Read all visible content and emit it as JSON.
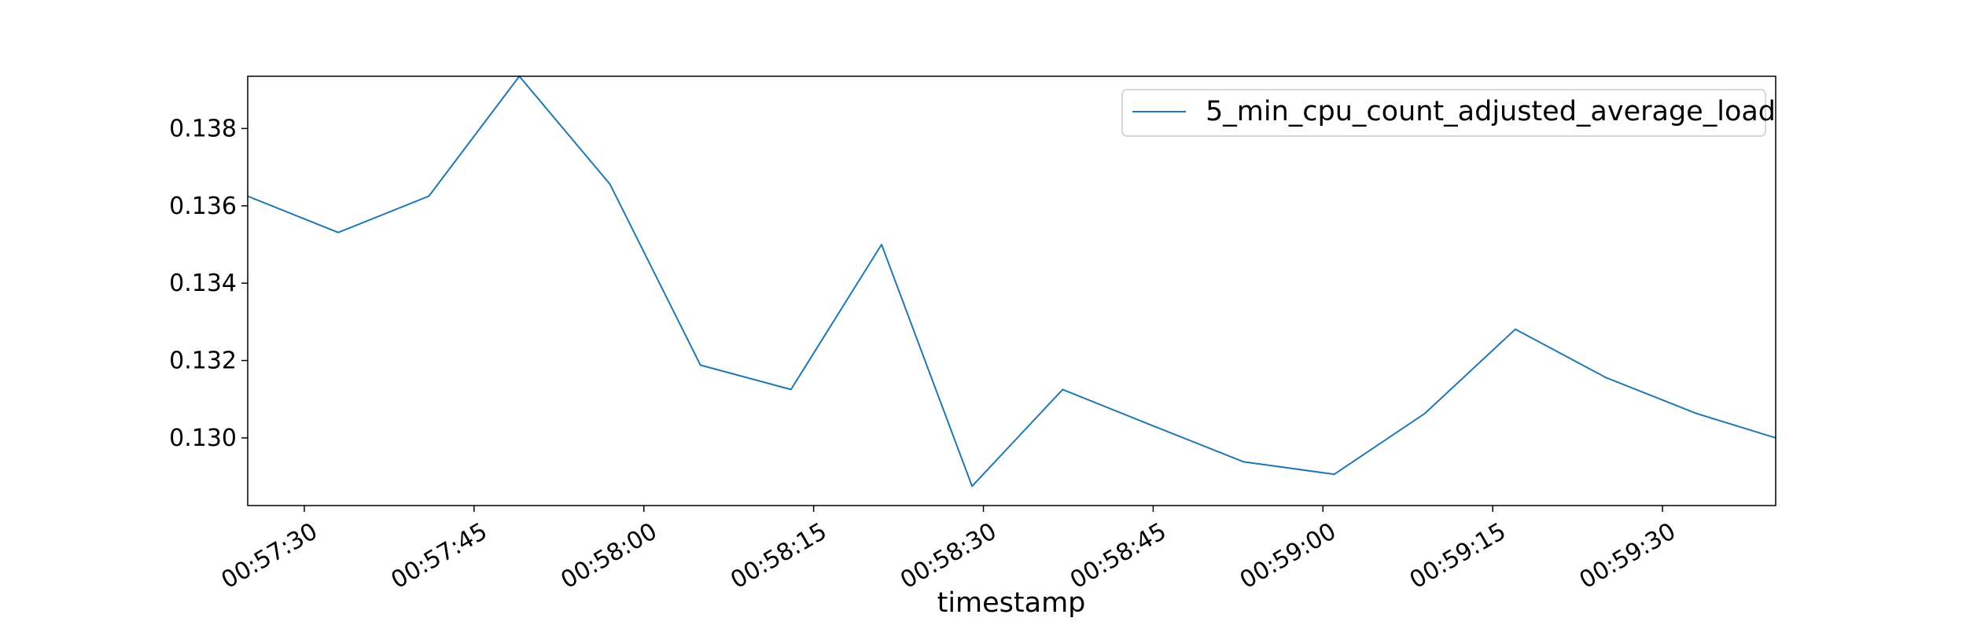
{
  "chart_data": {
    "type": "line",
    "title": "",
    "xlabel": "timestamp",
    "ylabel": "",
    "grid": false,
    "legend": {
      "position": "top-right",
      "entries": [
        "5_min_cpu_count_adjusted_average_load"
      ]
    },
    "xlim": [
      "00:57:25",
      "00:59:40"
    ],
    "ylim": [
      0.12825,
      0.13935
    ],
    "x_ticks": [
      "00:57:30",
      "00:57:45",
      "00:58:00",
      "00:58:15",
      "00:58:30",
      "00:58:45",
      "00:59:00",
      "00:59:15",
      "00:59:30"
    ],
    "y_ticks": [
      "0.130",
      "0.132",
      "0.134",
      "0.136",
      "0.138"
    ],
    "series": [
      {
        "name": "5_min_cpu_count_adjusted_average_load",
        "color": "#1f77b4",
        "x": [
          "00:57:25",
          "00:57:33",
          "00:57:41",
          "00:57:49",
          "00:57:57",
          "00:58:05",
          "00:58:13",
          "00:58:21",
          "00:58:29",
          "00:58:37",
          "00:58:45",
          "00:58:53",
          "00:59:01",
          "00:59:09",
          "00:59:17",
          "00:59:25",
          "00:59:33",
          "00:59:40"
        ],
        "values": [
          0.13625,
          0.13531,
          0.13625,
          0.13935,
          0.13656,
          0.13188,
          0.13125,
          0.135,
          0.12875,
          0.13125,
          0.13031,
          0.12938,
          0.12906,
          0.13063,
          0.13281,
          0.13156,
          0.13063,
          0.13
        ]
      }
    ]
  }
}
